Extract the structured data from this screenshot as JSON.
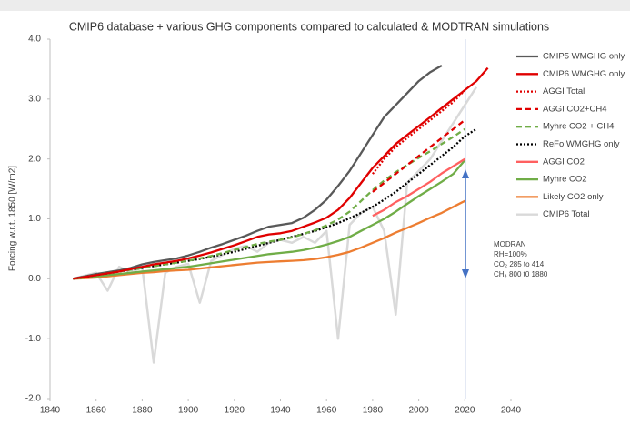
{
  "chart_data": {
    "type": "line",
    "title": "CMIP6 database + various GHG components compared to calculated & MODTRAN simulations",
    "y_label": "Forcing w.r.t. 1850 [W/m2]",
    "x": [
      1850,
      1855,
      1860,
      1865,
      1870,
      1875,
      1880,
      1885,
      1890,
      1895,
      1900,
      1905,
      1910,
      1915,
      1920,
      1925,
      1930,
      1935,
      1940,
      1945,
      1950,
      1955,
      1960,
      1965,
      1970,
      1975,
      1980,
      1985,
      1990,
      1995,
      2000,
      2005,
      2010,
      2015,
      2020,
      2025,
      2030
    ],
    "xlim": [
      1840,
      2040
    ],
    "xticks": [
      1840,
      1860,
      1880,
      1900,
      1920,
      1940,
      1960,
      1980,
      2000,
      2020,
      2040
    ],
    "ylim": [
      -2,
      4
    ],
    "yticks": [
      {
        "value": -2,
        "label": "-2.0"
      },
      {
        "value": -1,
        "label": "-1.0"
      },
      {
        "value": 0,
        "label": "0.0"
      },
      {
        "value": 1,
        "label": "1.0"
      },
      {
        "value": 2,
        "label": "2.0"
      },
      {
        "value": 3,
        "label": "3.0"
      },
      {
        "value": 4,
        "label": "4.0"
      }
    ],
    "grid": false,
    "legend": "right",
    "series": [
      {
        "name": "CMIP6 Total",
        "color": "#d9d9d9",
        "style": "solid",
        "legend_order": 9,
        "values": [
          0,
          0.05,
          0.1,
          -0.2,
          0.2,
          0.1,
          0.2,
          -1.4,
          0.1,
          0.2,
          0.25,
          -0.4,
          0.3,
          0.4,
          0.5,
          0.55,
          0.45,
          0.6,
          0.65,
          0.6,
          0.7,
          0.6,
          0.8,
          -1.0,
          0.9,
          1.1,
          1.2,
          0.8,
          -0.6,
          1.6,
          1.8,
          2.0,
          2.3,
          2.6,
          2.9,
          3.2,
          null
        ]
      },
      {
        "name": "CMIP5 WMGHG only",
        "color": "#595959",
        "style": "solid",
        "legend_order": 0,
        "values": [
          0,
          0.04,
          0.08,
          0.11,
          0.14,
          0.18,
          0.24,
          0.28,
          0.31,
          0.34,
          0.39,
          0.45,
          0.52,
          0.58,
          0.65,
          0.72,
          0.8,
          0.87,
          0.9,
          0.93,
          1.02,
          1.15,
          1.32,
          1.55,
          1.8,
          2.1,
          2.4,
          2.7,
          2.9,
          3.1,
          3.3,
          3.45,
          3.56,
          null,
          null,
          null,
          null
        ]
      },
      {
        "name": "Likely CO2 only",
        "color": "#ed7d31",
        "style": "solid",
        "legend_order": 8,
        "values": [
          0,
          0.01,
          0.02,
          0.04,
          0.06,
          0.08,
          0.1,
          0.11,
          0.13,
          0.14,
          0.15,
          0.17,
          0.19,
          0.21,
          0.23,
          0.25,
          0.27,
          0.28,
          0.29,
          0.3,
          0.31,
          0.33,
          0.36,
          0.4,
          0.45,
          0.52,
          0.6,
          0.68,
          0.77,
          0.85,
          0.93,
          1.02,
          1.1,
          1.2,
          1.3,
          null,
          null
        ]
      },
      {
        "name": "Myhre CO2",
        "color": "#70ad47",
        "style": "solid",
        "legend_order": 7,
        "values": [
          0,
          0.02,
          0.04,
          0.06,
          0.08,
          0.1,
          0.12,
          0.14,
          0.16,
          0.18,
          0.2,
          0.23,
          0.26,
          0.29,
          0.32,
          0.35,
          0.38,
          0.41,
          0.43,
          0.45,
          0.48,
          0.52,
          0.57,
          0.63,
          0.7,
          0.8,
          0.9,
          1.0,
          1.12,
          1.25,
          1.38,
          1.5,
          1.62,
          1.75,
          1.98,
          null,
          null
        ]
      },
      {
        "name": "AGGI CO2",
        "color": "#ff6060",
        "style": "solid",
        "legend_order": 6,
        "values": [
          null,
          null,
          null,
          null,
          null,
          null,
          null,
          null,
          null,
          null,
          null,
          null,
          null,
          null,
          null,
          null,
          null,
          null,
          null,
          null,
          null,
          null,
          null,
          null,
          null,
          null,
          1.05,
          1.15,
          1.28,
          1.38,
          1.5,
          1.62,
          1.76,
          1.88,
          2.0,
          null,
          null
        ]
      },
      {
        "name": "ReFo WMGHG only",
        "color": "#000000",
        "style": "dotted",
        "legend_order": 5,
        "values": [
          0,
          0.03,
          0.06,
          0.09,
          0.12,
          0.15,
          0.18,
          0.21,
          0.24,
          0.27,
          0.3,
          0.33,
          0.37,
          0.41,
          0.45,
          0.5,
          0.55,
          0.6,
          0.65,
          0.7,
          0.75,
          0.8,
          0.86,
          0.93,
          1.01,
          1.1,
          1.2,
          1.32,
          1.45,
          1.6,
          1.75,
          1.9,
          2.05,
          2.2,
          2.38,
          2.5,
          null
        ]
      },
      {
        "name": "Myhre CO2 + CH4",
        "color": "#70ad47",
        "style": "dashed",
        "legend_order": 4,
        "values": [
          0,
          0.03,
          0.06,
          0.09,
          0.12,
          0.15,
          0.18,
          0.21,
          0.24,
          0.27,
          0.3,
          0.34,
          0.38,
          0.43,
          0.48,
          0.53,
          0.58,
          0.62,
          0.65,
          0.69,
          0.75,
          0.81,
          0.89,
          0.99,
          1.12,
          1.3,
          1.48,
          1.64,
          1.78,
          1.9,
          2.02,
          2.13,
          2.25,
          2.37,
          2.5,
          null,
          null
        ]
      },
      {
        "name": "AGGI CO2+CH4",
        "color": "#e00000",
        "style": "dashed",
        "legend_order": 3,
        "values": [
          null,
          null,
          null,
          null,
          null,
          null,
          null,
          null,
          null,
          null,
          null,
          null,
          null,
          null,
          null,
          null,
          null,
          null,
          null,
          null,
          null,
          null,
          null,
          null,
          null,
          null,
          1.45,
          1.6,
          1.75,
          1.9,
          2.05,
          2.2,
          2.35,
          2.5,
          2.65,
          null,
          null
        ]
      },
      {
        "name": "AGGI Total",
        "color": "#e00000",
        "style": "dotted",
        "legend_order": 2,
        "values": [
          null,
          null,
          null,
          null,
          null,
          null,
          null,
          null,
          null,
          null,
          null,
          null,
          null,
          null,
          null,
          null,
          null,
          null,
          null,
          null,
          null,
          null,
          null,
          null,
          null,
          null,
          1.75,
          2.0,
          2.2,
          2.35,
          2.5,
          2.65,
          2.8,
          2.95,
          3.15,
          null,
          null
        ]
      },
      {
        "name": "CMIP6 WMGHG only",
        "color": "#e00000",
        "style": "solid",
        "legend_order": 1,
        "values": [
          0,
          0.03,
          0.06,
          0.09,
          0.12,
          0.16,
          0.2,
          0.24,
          0.27,
          0.3,
          0.34,
          0.39,
          0.44,
          0.5,
          0.56,
          0.63,
          0.7,
          0.74,
          0.76,
          0.8,
          0.87,
          0.94,
          1.02,
          1.15,
          1.35,
          1.6,
          1.85,
          2.05,
          2.25,
          2.4,
          2.55,
          2.7,
          2.85,
          3.0,
          3.15,
          3.3,
          3.52
        ]
      }
    ],
    "annotations": [
      "MODRAN",
      "RH=100%",
      "CO₂ 285 to 414",
      "CH₄ 800 t0 1880"
    ]
  }
}
